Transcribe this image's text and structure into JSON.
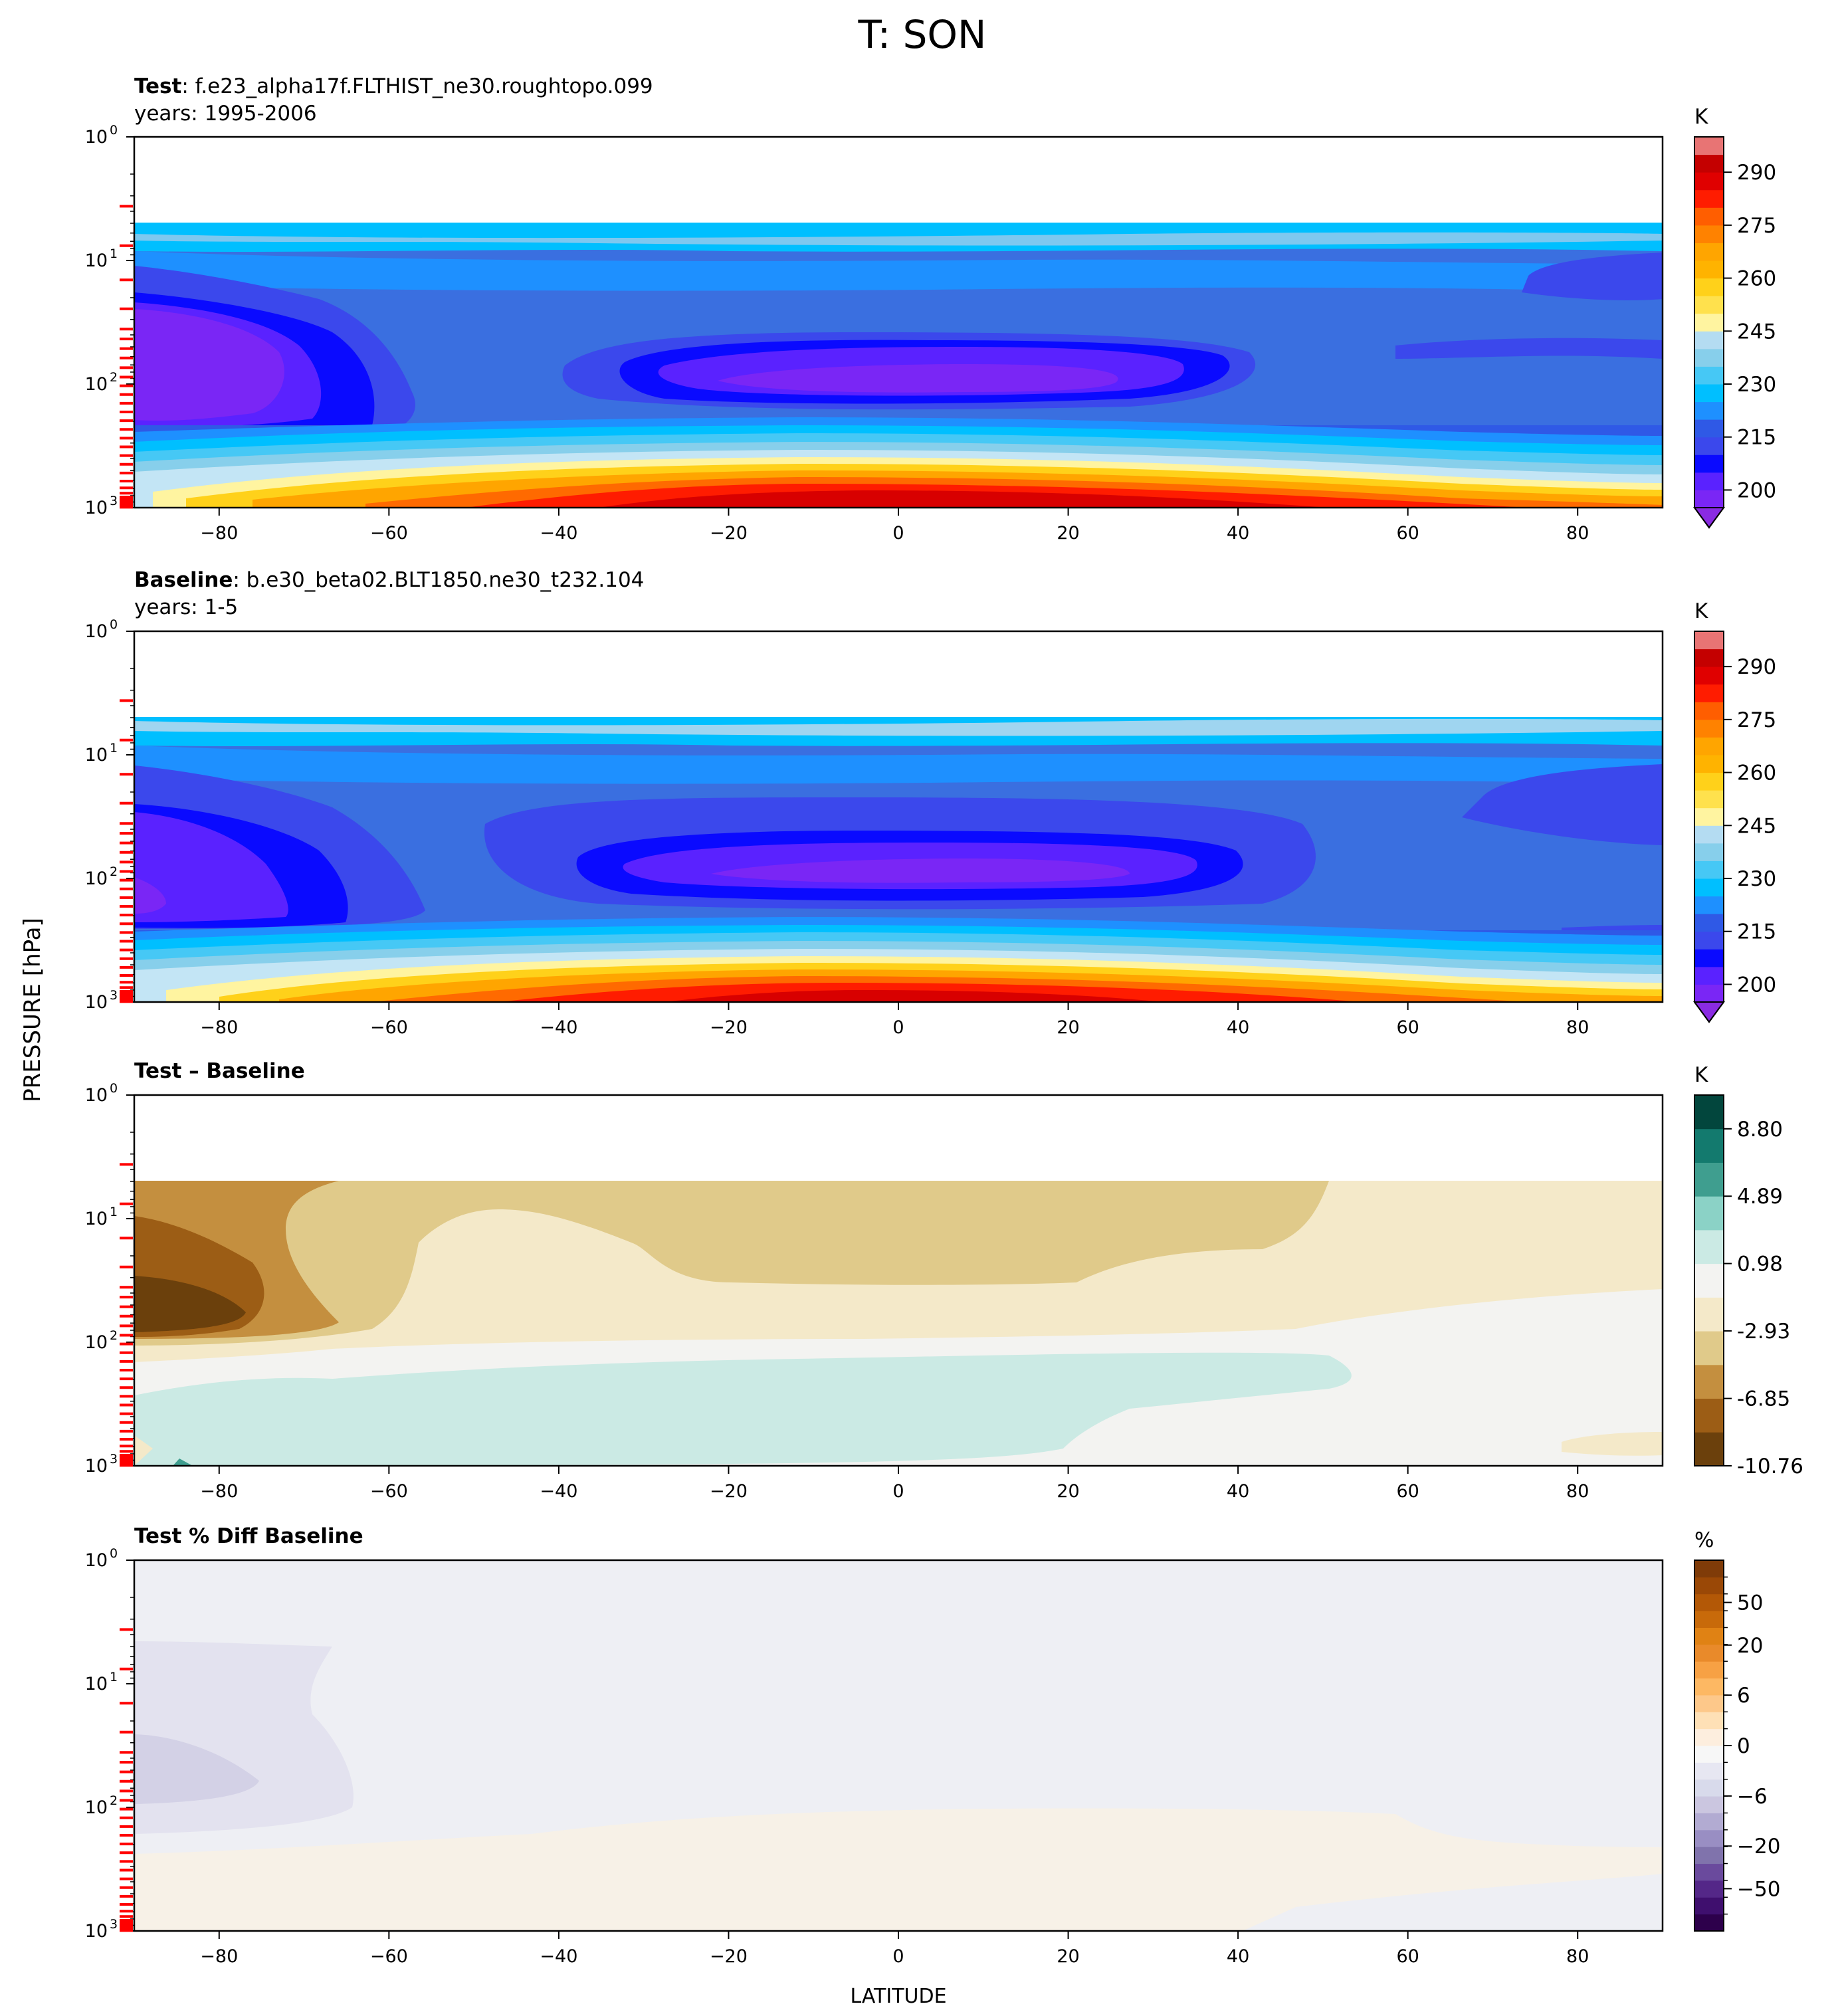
{
  "figure": {
    "title": "T: SON",
    "ylabel": "PRESSURE [hPa]",
    "xlabel": "LATITUDE"
  },
  "panels": [
    {
      "key": "test",
      "title_bold": "Test",
      "title_rest": ": f.e23_alpha17f.FLTHIST_ne30.roughtopo.099",
      "subtitle": "years: 1995-2006",
      "colorbar_unit": "K",
      "colorbar_ticks": [
        "200",
        "215",
        "230",
        "245",
        "260",
        "275",
        "290"
      ]
    },
    {
      "key": "baseline",
      "title_bold": "Baseline",
      "title_rest": ": b.e30_beta02.BLT1850.ne30_t232.104",
      "subtitle": "years: 1-5",
      "colorbar_unit": "K",
      "colorbar_ticks": [
        "200",
        "215",
        "230",
        "245",
        "260",
        "275",
        "290"
      ]
    },
    {
      "key": "diff",
      "title_bold": "Test – Baseline",
      "title_rest": "",
      "subtitle": "",
      "colorbar_unit": "K",
      "colorbar_ticks": [
        "-10.76",
        "-6.85",
        "-2.93",
        "0.98",
        "4.89",
        "8.80"
      ]
    },
    {
      "key": "pct",
      "title_bold": "Test % Diff Baseline",
      "title_rest": "",
      "subtitle": "",
      "colorbar_unit": "%",
      "colorbar_ticks": [
        "−50",
        "−20",
        "−6",
        "0",
        "6",
        "20",
        "50"
      ]
    }
  ],
  "chart_data": [
    {
      "type": "heatmap",
      "name": "Test",
      "field": "T",
      "season": "SON",
      "units": "K",
      "x_axis": {
        "label": "LATITUDE",
        "range": [
          -90,
          90
        ],
        "ticks": [
          -80,
          -60,
          -40,
          -20,
          0,
          20,
          40,
          60,
          80
        ]
      },
      "y_axis": {
        "label": "PRESSURE [hPa]",
        "scale": "log",
        "inverted": true,
        "range_hPa": [
          1,
          1000
        ],
        "ticks": [
          "10^0",
          "10^1",
          "10^2",
          "10^3"
        ]
      },
      "data_top_hPa": 5,
      "contour_levels": [
        200,
        205,
        210,
        215,
        220,
        225,
        230,
        235,
        240,
        245,
        250,
        255,
        260,
        265,
        270,
        275,
        280,
        285,
        290,
        295
      ],
      "features": [
        {
          "desc": "cold tropical tropopause",
          "lat_range": [
            -25,
            30
          ],
          "p_hPa": 90,
          "approx_K": 197
        },
        {
          "desc": "cold SH polar stratosphere",
          "lat_range": [
            -90,
            -70
          ],
          "p_hPa": 60,
          "approx_K": 198
        },
        {
          "desc": "warm tropical surface",
          "lat_range": [
            -20,
            20
          ],
          "p_hPa": 1000,
          "approx_K": 297
        }
      ]
    },
    {
      "type": "heatmap",
      "name": "Baseline",
      "field": "T",
      "season": "SON",
      "units": "K",
      "x_axis": {
        "label": "LATITUDE",
        "range": [
          -90,
          90
        ],
        "ticks": [
          -80,
          -60,
          -40,
          -20,
          0,
          20,
          40,
          60,
          80
        ]
      },
      "y_axis": {
        "label": "PRESSURE [hPa]",
        "scale": "log",
        "inverted": true,
        "range_hPa": [
          1,
          1000
        ],
        "ticks": [
          "10^0",
          "10^1",
          "10^2",
          "10^3"
        ]
      },
      "data_top_hPa": 5,
      "contour_levels": [
        200,
        205,
        210,
        215,
        220,
        225,
        230,
        235,
        240,
        245,
        250,
        255,
        260,
        265,
        270,
        275,
        280,
        285,
        290,
        295
      ],
      "features": [
        {
          "desc": "cold tropical tropopause",
          "lat_range": [
            -25,
            30
          ],
          "p_hPa": 90,
          "approx_K": 197
        },
        {
          "desc": "cold SH polar stratosphere",
          "lat_range": [
            -90,
            -70
          ],
          "p_hPa": 80,
          "approx_K": 198
        },
        {
          "desc": "warm tropical surface",
          "lat_range": [
            -20,
            20
          ],
          "p_hPa": 1000,
          "approx_K": 297
        }
      ]
    },
    {
      "type": "heatmap",
      "name": "Test – Baseline",
      "units": "K",
      "x_axis": {
        "label": "LATITUDE",
        "range": [
          -90,
          90
        ],
        "ticks": [
          -80,
          -60,
          -40,
          -20,
          0,
          20,
          40,
          60,
          80
        ]
      },
      "y_axis": {
        "label": "PRESSURE [hPa]",
        "scale": "log",
        "inverted": true,
        "range_hPa": [
          1,
          1000
        ]
      },
      "colorbar_range": [
        -10.76,
        10.76
      ],
      "features": [
        {
          "desc": "strong cooling SH polar stratosphere",
          "lat_range": [
            -90,
            -75
          ],
          "p_hPa": 50,
          "approx_K": -10
        },
        {
          "desc": "weak warming tropical troposphere",
          "lat_range": [
            -85,
            50
          ],
          "p_hPa": 400,
          "approx_K": 1
        },
        {
          "desc": "weak cooling upper levels",
          "lat_range": [
            -40,
            90
          ],
          "p_hPa": 20,
          "approx_K": -2
        }
      ]
    },
    {
      "type": "heatmap",
      "name": "Test % Diff Baseline",
      "units": "%",
      "x_axis": {
        "label": "LATITUDE",
        "range": [
          -90,
          90
        ],
        "ticks": [
          -80,
          -60,
          -40,
          -20,
          0,
          20,
          40,
          60,
          80
        ]
      },
      "y_axis": {
        "label": "PRESSURE [hPa]",
        "scale": "log",
        "inverted": true,
        "range_hPa": [
          1,
          1000
        ]
      },
      "colorbar_range": [
        -100,
        100
      ],
      "features": [
        {
          "desc": "slight negative SH polar stratosphere",
          "lat_range": [
            -90,
            -65
          ],
          "p_hPa": 50,
          "approx_pct": -3
        },
        {
          "desc": "slight positive lower troposphere",
          "lat_range": [
            -90,
            90
          ],
          "p_hPa": 500,
          "approx_pct": 0.5
        }
      ]
    }
  ]
}
